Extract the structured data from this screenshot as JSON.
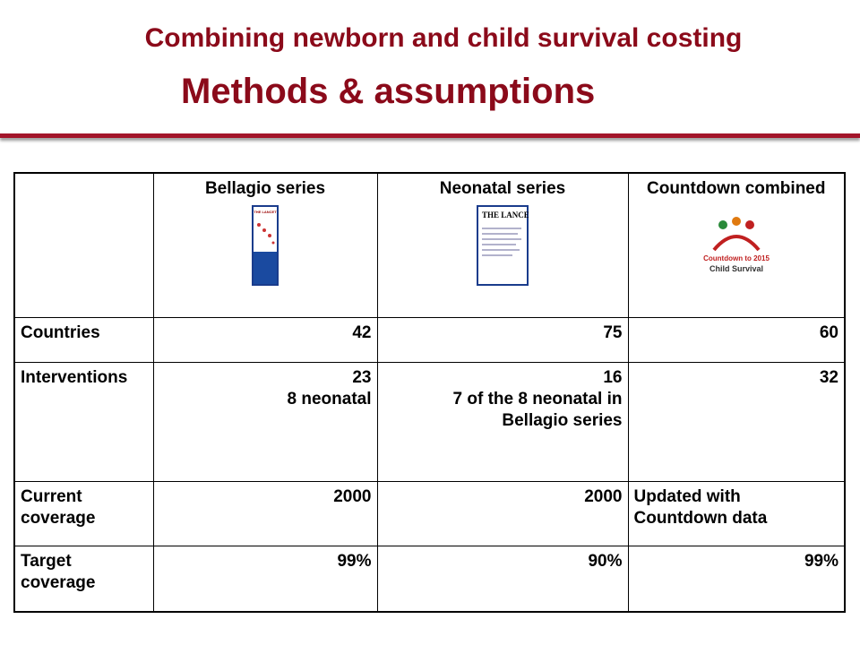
{
  "header": {
    "title": "Combining newborn and child survival costing",
    "subtitle": "Methods & assumptions"
  },
  "table": {
    "columns": [
      "Bellagio series",
      "Neonatal series",
      "Countdown combined"
    ],
    "images": {
      "lancet": "THE LANCET",
      "countdown": [
        "Countdown to 2015",
        "Child Survival"
      ]
    },
    "rows": [
      {
        "label": "Countries",
        "cells": [
          [
            "42"
          ],
          [
            "75"
          ],
          [
            "60"
          ]
        ]
      },
      {
        "label": "Interventions",
        "cells": [
          [
            "23",
            "8 neonatal"
          ],
          [
            "16",
            "7 of the 8 neonatal in Bellagio series"
          ],
          [
            "32"
          ]
        ]
      },
      {
        "label": "Current coverage",
        "cells": [
          [
            "2000"
          ],
          [
            "2000"
          ],
          [
            "Updated with Countdown data"
          ]
        ]
      },
      {
        "label": "Target coverage",
        "cells": [
          [
            "99%"
          ],
          [
            "90%"
          ],
          [
            "99%"
          ]
        ]
      }
    ]
  }
}
